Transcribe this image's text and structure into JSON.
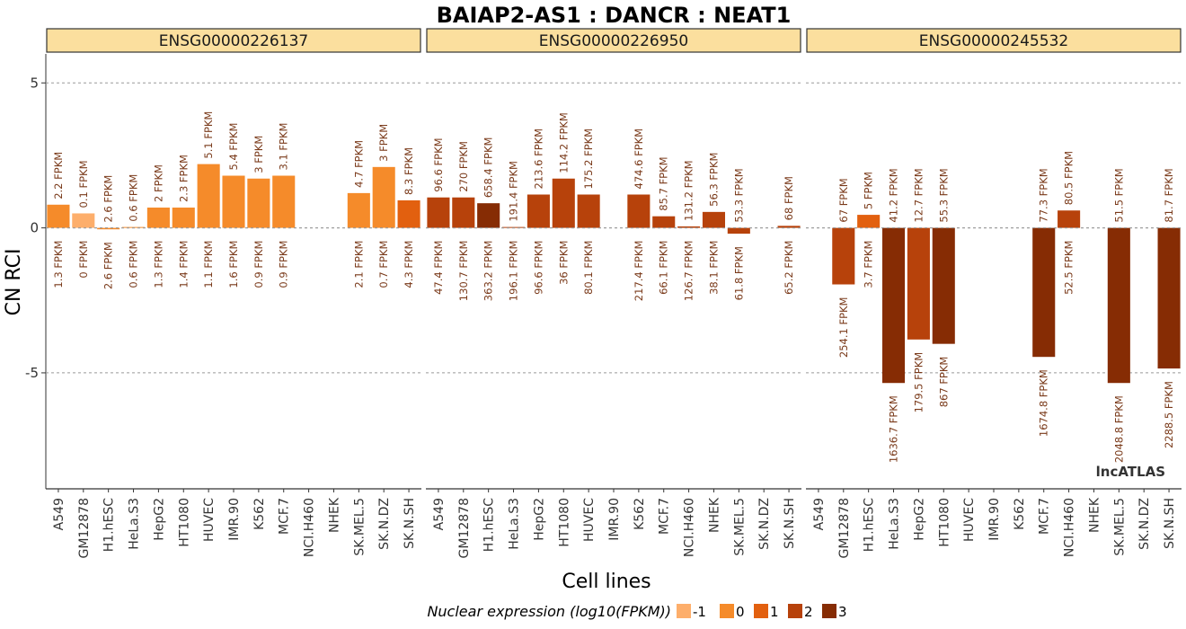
{
  "chart_data": {
    "type": "bar",
    "title": "BAIAP2-AS1 : DANCR : NEAT1",
    "xlabel": "Cell lines",
    "ylabel": "CN RCI",
    "ylim": [
      -9.0,
      6.0
    ],
    "yticks": [
      5,
      0,
      -5
    ],
    "ytick_labels": [
      "5",
      "0",
      "-5"
    ],
    "grid": true,
    "categories": [
      "A549",
      "GM12878",
      "H1.hESC",
      "HeLa.S3",
      "HepG2",
      "HT1080",
      "HUVEC",
      "IMR.90",
      "K562",
      "MCF.7",
      "NCI.H460",
      "NHEK",
      "SK.MEL.5",
      "SK.N.DZ",
      "SK.N.SH"
    ],
    "facets": [
      {
        "label": "ENSG00000226137",
        "values": [
          0.8,
          0.5,
          -0.05,
          0.03,
          0.7,
          0.7,
          2.2,
          1.8,
          1.7,
          1.8,
          null,
          null,
          1.2,
          2.1,
          0.95
        ],
        "cyto_fpkm": [
          "2.2 FPKM",
          "0.1 FPKM",
          "2.6 FPKM",
          "0.6 FPKM",
          "2 FPKM",
          "2.3 FPKM",
          "5.1 FPKM",
          "5.4 FPKM",
          "3 FPKM",
          "3.1 FPKM",
          "",
          "",
          "4.7 FPKM",
          "3 FPKM",
          "8.3 FPKM"
        ],
        "nuc_fpkm": [
          "1.3 FPKM",
          "0 FPKM",
          "2.6 FPKM",
          "0.6 FPKM",
          "1.3 FPKM",
          "1.4 FPKM",
          "1.1 FPKM",
          "1.6 FPKM",
          "0.9 FPKM",
          "0.9 FPKM",
          "",
          "",
          "2.1 FPKM",
          "0.7 FPKM",
          "4.3 FPKM"
        ],
        "nuc_log10": [
          0.11,
          -1,
          0.41,
          -0.22,
          0.11,
          0.15,
          0.04,
          0.2,
          -0.05,
          -0.05,
          null,
          null,
          0.32,
          -0.15,
          0.63
        ]
      },
      {
        "label": "ENSG00000226950",
        "values": [
          1.05,
          1.05,
          0.85,
          0.03,
          1.15,
          1.7,
          1.15,
          null,
          1.15,
          0.4,
          0.05,
          0.55,
          -0.2,
          null,
          0.07
        ],
        "cyto_fpkm": [
          "96.6 FPKM",
          "270 FPKM",
          "658.4 FPKM",
          "191.4 FPKM",
          "213.6 FPKM",
          "114.2 FPKM",
          "175.2 FPKM",
          "",
          "474.6 FPKM",
          "85.7 FPKM",
          "131.2 FPKM",
          "56.3 FPKM",
          "53.3 FPKM",
          "",
          "68 FPKM"
        ],
        "nuc_fpkm": [
          "47.4 FPKM",
          "130.7 FPKM",
          "363.2 FPKM",
          "196.1 FPKM",
          "96.6 FPKM",
          "36 FPKM",
          "80.1 FPKM",
          "",
          "217.4 FPKM",
          "66.1 FPKM",
          "126.7 FPKM",
          "38.1 FPKM",
          "61.8 FPKM",
          "",
          "65.2 FPKM"
        ],
        "nuc_log10": [
          1.68,
          2.12,
          2.56,
          2.29,
          1.98,
          1.56,
          1.9,
          null,
          2.34,
          1.82,
          2.1,
          1.58,
          1.79,
          null,
          1.81
        ]
      },
      {
        "label": "ENSG00000245532",
        "values": [
          null,
          -1.95,
          0.45,
          -5.35,
          -3.85,
          -4.0,
          null,
          null,
          null,
          -4.45,
          0.6,
          null,
          -5.35,
          null,
          -4.85
        ],
        "cyto_fpkm": [
          "",
          "67 FPKM",
          "5 FPKM",
          "41.2 FPKM",
          "12.7 FPKM",
          "55.3 FPKM",
          "",
          "",
          "",
          "77.3 FPKM",
          "80.5 FPKM",
          "",
          "51.5 FPKM",
          "",
          "81.7 FPKM"
        ],
        "nuc_fpkm": [
          "",
          "254.1 FPKM",
          "3.7 FPKM",
          "1636.7 FPKM",
          "179.5 FPKM",
          "867 FPKM",
          "",
          "",
          "",
          "1674.8 FPKM",
          "52.5 FPKM",
          "",
          "2048.8 FPKM",
          "",
          "2288.5 FPKM"
        ],
        "nuc_log10": [
          null,
          2.41,
          0.57,
          3.21,
          2.25,
          2.94,
          null,
          null,
          null,
          3.22,
          1.72,
          null,
          3.31,
          null,
          3.36
        ]
      }
    ],
    "legend": {
      "title": "Nuclear expression (log10(FPKM))",
      "placement": "bottom",
      "items": [
        {
          "label": "-1",
          "color": "#FDAE6B"
        },
        {
          "label": "0",
          "color": "#F58B2A"
        },
        {
          "label": "1",
          "color": "#E2600F"
        },
        {
          "label": "2",
          "color": "#B7420B"
        },
        {
          "label": "3",
          "color": "#862C04"
        }
      ]
    },
    "colors": {
      "strip_fill": "#FBDF9E",
      "grid": "#999999",
      "fpkm_text": "#7A3A1A"
    },
    "watermark": "lncATLAS"
  }
}
